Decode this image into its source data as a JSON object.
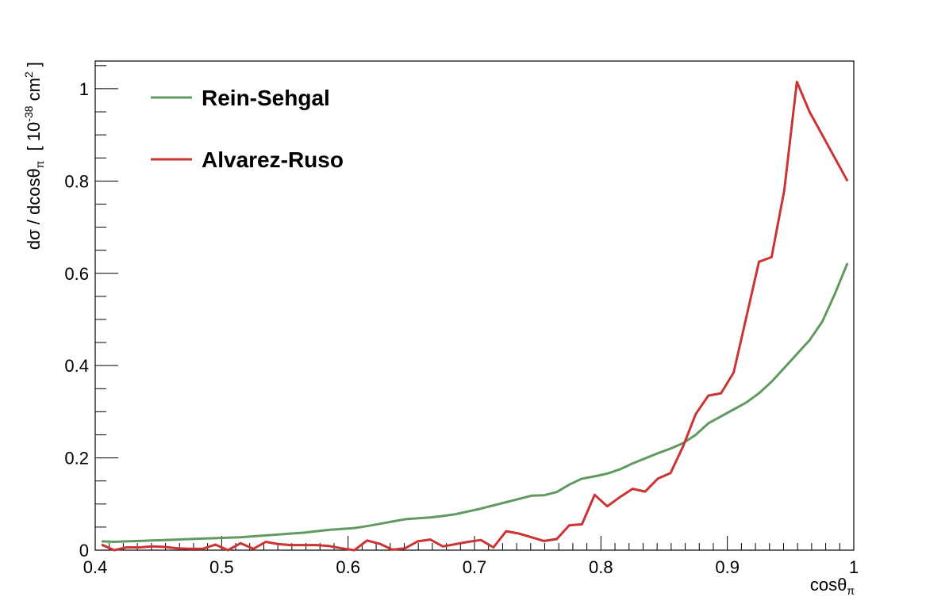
{
  "chart_data": {
    "type": "line",
    "title": "",
    "xlabel": "cosθ",
    "xlabel_sub": "π",
    "ylabel": {
      "prefix": "dσ / dcosθ",
      "sub": "π",
      "bracket_open": "  [ 10",
      "exp1": "-38",
      "unit": " cm",
      "exp2": "2",
      "bracket_close": " ]"
    },
    "xlim": [
      0.4,
      1.0
    ],
    "ylim": [
      0,
      1.06
    ],
    "xticks": [
      0.4,
      0.5,
      0.6,
      0.7,
      0.8,
      0.9,
      1.0
    ],
    "xtick_labels": [
      "0.4",
      "0.5",
      "0.6",
      "0.7",
      "0.8",
      "0.9",
      "1"
    ],
    "yticks": [
      0,
      0.2,
      0.4,
      0.6,
      0.8,
      1.0
    ],
    "ytick_labels": [
      "0",
      "0.2",
      "0.4",
      "0.6",
      "0.8",
      "1"
    ],
    "grid": false,
    "legend_position": "top-left",
    "x": [
      0.405,
      0.415,
      0.425,
      0.435,
      0.445,
      0.455,
      0.465,
      0.475,
      0.485,
      0.495,
      0.505,
      0.515,
      0.525,
      0.535,
      0.545,
      0.555,
      0.565,
      0.575,
      0.585,
      0.595,
      0.605,
      0.615,
      0.625,
      0.635,
      0.645,
      0.655,
      0.665,
      0.675,
      0.685,
      0.695,
      0.705,
      0.715,
      0.725,
      0.735,
      0.745,
      0.755,
      0.765,
      0.775,
      0.785,
      0.795,
      0.805,
      0.815,
      0.825,
      0.835,
      0.845,
      0.855,
      0.865,
      0.875,
      0.885,
      0.895,
      0.905,
      0.915,
      0.925,
      0.935,
      0.945,
      0.955,
      0.965,
      0.975,
      0.985,
      0.995
    ],
    "series": [
      {
        "name": "Rein-Sehgal",
        "color": "#5f9a5f",
        "values": [
          0.019,
          0.018,
          0.019,
          0.02,
          0.021,
          0.022,
          0.023,
          0.024,
          0.025,
          0.026,
          0.027,
          0.028,
          0.03,
          0.032,
          0.034,
          0.036,
          0.038,
          0.041,
          0.044,
          0.046,
          0.048,
          0.052,
          0.057,
          0.062,
          0.067,
          0.069,
          0.071,
          0.074,
          0.078,
          0.084,
          0.09,
          0.097,
          0.104,
          0.111,
          0.118,
          0.119,
          0.126,
          0.142,
          0.155,
          0.16,
          0.166,
          0.175,
          0.188,
          0.199,
          0.21,
          0.22,
          0.232,
          0.25,
          0.275,
          0.29,
          0.305,
          0.32,
          0.34,
          0.365,
          0.395,
          0.425,
          0.455,
          0.495,
          0.555,
          0.622
        ]
      },
      {
        "name": "Alvarez-Ruso",
        "color": "#cc3333",
        "values": [
          0.012,
          0.0,
          0.006,
          0.006,
          0.008,
          0.007,
          0.004,
          0.003,
          0.003,
          0.012,
          0.0,
          0.015,
          0.003,
          0.018,
          0.013,
          0.011,
          0.011,
          0.011,
          0.009,
          0.004,
          0.0,
          0.021,
          0.014,
          0.001,
          0.004,
          0.019,
          0.023,
          0.008,
          0.013,
          0.018,
          0.022,
          0.006,
          0.041,
          0.036,
          0.028,
          0.02,
          0.024,
          0.054,
          0.056,
          0.12,
          0.095,
          0.115,
          0.133,
          0.127,
          0.155,
          0.167,
          0.225,
          0.295,
          0.335,
          0.34,
          0.385,
          0.505,
          0.625,
          0.635,
          0.78,
          1.015,
          0.95,
          0.9,
          0.85,
          0.8
        ]
      }
    ]
  }
}
